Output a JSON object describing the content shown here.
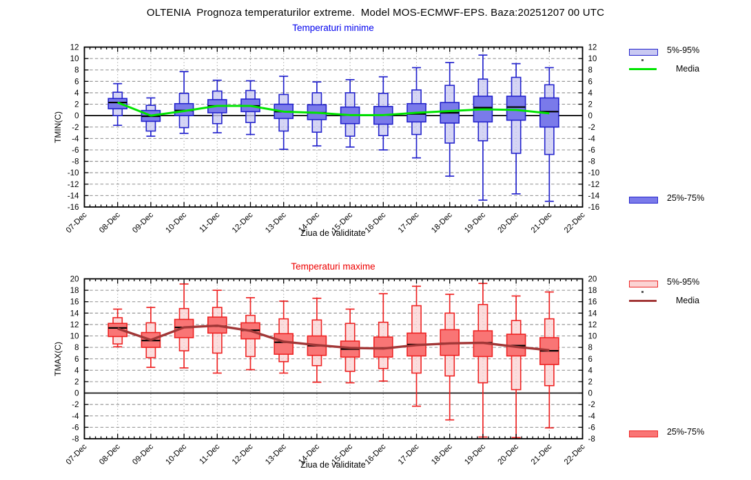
{
  "title": "OLTENIA  Prognoza temperaturilor extreme.  Model MOS-ECMWF-EPS. Baza:20251207 00 UTC",
  "chart_data": {
    "type": "boxplot",
    "x_label": "Ziua de validitate",
    "x_dates": [
      "07-Dec",
      "08-Dec",
      "09-Dec",
      "10-Dec",
      "11-Dec",
      "12-Dec",
      "13-Dec",
      "14-Dec",
      "15-Dec",
      "16-Dec",
      "17-Dec",
      "18-Dec",
      "19-Dec",
      "20-Dec",
      "21-Dec",
      "22-Dec"
    ],
    "legend": {
      "band_5_95": "5%-95%",
      "mean": "Media",
      "band_25_75": "25%-75%"
    },
    "panels": [
      {
        "subtitle": "Temperaturi minime",
        "ylabel": "TMIN(C)",
        "ylim": [
          -16,
          12
        ],
        "ytick_step": 2,
        "grid": true,
        "colors": {
          "stroke": "#2222cc",
          "band_light": "#c9c9f2",
          "band_dark": "#7a7aea",
          "mean_line": "#00e400",
          "median": "#000000",
          "subtitle": "#0000ee"
        },
        "dates": [
          "08-Dec",
          "09-Dec",
          "10-Dec",
          "11-Dec",
          "12-Dec",
          "13-Dec",
          "14-Dec",
          "15-Dec",
          "16-Dec",
          "17-Dec",
          "18-Dec",
          "19-Dec",
          "20-Dec",
          "21-Dec"
        ],
        "min": [
          -1.7,
          -3.6,
          -3.1,
          -3.0,
          -3.3,
          -5.9,
          -5.3,
          -5.5,
          -6.0,
          -7.4,
          -10.6,
          -14.8,
          -13.7,
          -15.0
        ],
        "p5": [
          0.0,
          -2.7,
          -2.1,
          -1.4,
          -1.2,
          -2.7,
          -2.9,
          -3.6,
          -3.5,
          -3.3,
          -4.8,
          -4.4,
          -6.6,
          -6.8
        ],
        "p25": [
          1.2,
          -1.0,
          0.0,
          0.5,
          0.7,
          -0.5,
          -0.7,
          -1.4,
          -1.5,
          -1.1,
          -1.3,
          -1.1,
          -0.8,
          -2.0
        ],
        "median": [
          2.3,
          -0.1,
          0.9,
          1.7,
          1.7,
          0.7,
          0.5,
          0.1,
          0.1,
          0.3,
          0.5,
          1.4,
          1.5,
          0.7
        ],
        "p75": [
          3.0,
          0.9,
          2.1,
          2.8,
          2.9,
          2.0,
          1.9,
          1.5,
          1.6,
          2.1,
          2.3,
          3.4,
          3.4,
          3.1
        ],
        "p95": [
          4.1,
          1.8,
          3.9,
          4.3,
          4.4,
          3.7,
          4.0,
          4.0,
          3.9,
          4.5,
          5.3,
          6.4,
          6.7,
          5.4
        ],
        "max": [
          5.6,
          3.1,
          7.7,
          6.2,
          6.1,
          6.9,
          5.9,
          6.3,
          6.8,
          8.4,
          9.3,
          10.6,
          9.1,
          8.4
        ],
        "mean": [
          2.3,
          0.0,
          0.8,
          1.7,
          1.7,
          0.7,
          0.5,
          0.1,
          0.1,
          0.5,
          0.8,
          1.1,
          1.0,
          0.4
        ]
      },
      {
        "subtitle": "Temperaturi maxime",
        "ylabel": "TMAX(C)",
        "ylim": [
          -8,
          20
        ],
        "ytick_step": 2,
        "grid": true,
        "colors": {
          "stroke": "#ee2222",
          "band_light": "#fbd4d4",
          "band_dark": "#f97575",
          "mean_line": "#a23737",
          "median": "#000000",
          "subtitle": "#ee0000"
        },
        "dates": [
          "08-Dec",
          "09-Dec",
          "10-Dec",
          "11-Dec",
          "12-Dec",
          "13-Dec",
          "14-Dec",
          "15-Dec",
          "16-Dec",
          "17-Dec",
          "18-Dec",
          "19-Dec",
          "20-Dec",
          "21-Dec"
        ],
        "min": [
          8.1,
          4.5,
          4.4,
          3.5,
          4.1,
          3.5,
          1.9,
          1.8,
          2.1,
          -2.3,
          -4.7,
          -7.7,
          -7.8,
          -6.1
        ],
        "p5": [
          8.6,
          6.2,
          7.4,
          7.0,
          6.4,
          5.5,
          4.8,
          3.8,
          4.3,
          3.5,
          3.0,
          1.8,
          0.6,
          1.3
        ],
        "p25": [
          9.9,
          8.0,
          9.7,
          10.5,
          9.5,
          6.8,
          6.6,
          6.3,
          6.3,
          6.5,
          6.6,
          6.4,
          6.5,
          5.0
        ],
        "median": [
          11.4,
          9.2,
          11.5,
          11.7,
          11.0,
          8.9,
          8.3,
          7.7,
          7.9,
          8.5,
          8.7,
          8.8,
          8.3,
          7.4
        ],
        "p75": [
          12.2,
          10.6,
          12.9,
          13.3,
          12.3,
          10.4,
          10.0,
          9.1,
          9.8,
          10.5,
          11.1,
          10.9,
          10.3,
          9.7
        ],
        "p95": [
          13.2,
          12.3,
          14.8,
          15.0,
          13.6,
          13.0,
          12.8,
          12.2,
          12.4,
          15.3,
          14.0,
          15.5,
          12.7,
          13.0
        ],
        "max": [
          14.7,
          15.0,
          19.1,
          18.0,
          16.7,
          16.1,
          16.6,
          14.7,
          17.4,
          18.7,
          17.3,
          19.2,
          17.0,
          17.7
        ],
        "mean": [
          11.3,
          9.3,
          11.5,
          11.8,
          10.9,
          9.0,
          8.4,
          7.9,
          7.8,
          8.4,
          8.7,
          8.8,
          8.1,
          7.5
        ]
      }
    ]
  }
}
